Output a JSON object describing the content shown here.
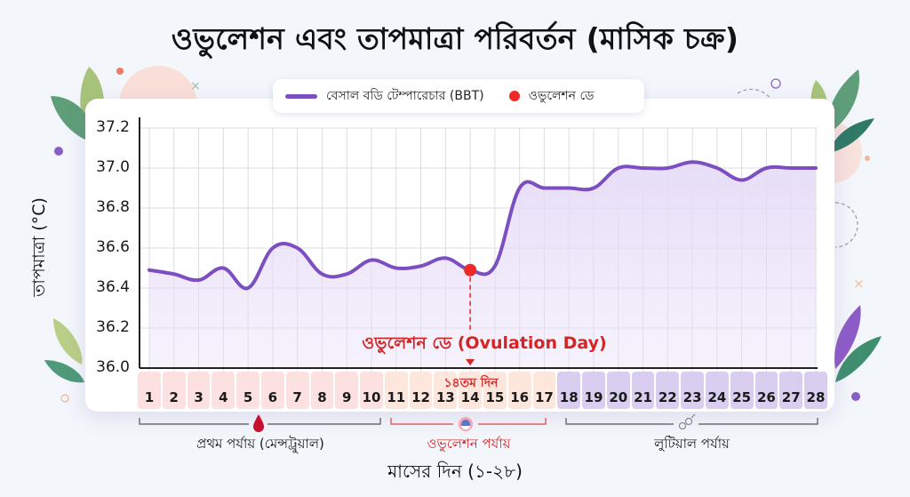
{
  "title": "ওভুলেশন এবং তাপমাত্রা পরিবর্তন (মাসিক চক্র)",
  "legend": {
    "line_label": "বেসাল বডি টেম্পারেচার (BBT)",
    "dot_label": "ওভুলেশন ডে"
  },
  "y_axis": {
    "label": "তাপমাত্রা (°C)",
    "ticks": [
      "37.2",
      "37.0",
      "36.8",
      "36.6",
      "36.4",
      "36.2",
      "36.0"
    ]
  },
  "x_axis": {
    "label": "মাসের দিন (১-২৮)",
    "days": [
      "1",
      "2",
      "3",
      "4",
      "5",
      "6",
      "7",
      "8",
      "9",
      "10",
      "11",
      "12",
      "13",
      "14",
      "15",
      "16",
      "17",
      "18",
      "19",
      "20",
      "21",
      "22",
      "23",
      "24",
      "25",
      "26",
      "27",
      "28"
    ],
    "day14_label": "১৪তম দিন"
  },
  "annotation": {
    "ovulation_text": "ওভুলেশন ডে (Ovulation Day)"
  },
  "phases": [
    {
      "name": "প্রথম পর্যায় (মেন্সট্রুয়াল)",
      "days": "1-10",
      "color": "#fde0e0",
      "icon": "blood-drop-icon"
    },
    {
      "name": "ওভুলেশন পর্যায়",
      "days": "11-17",
      "color": "#fde6dc",
      "icon": "egg-cell-icon"
    },
    {
      "name": "লুটিয়াল পর্যায়",
      "days": "18-28",
      "color": "#d9cdf0",
      "icon": "hormone-molecule-icon"
    }
  ],
  "colors": {
    "line": "#7b4fc2",
    "fill": "#e6dcf7",
    "ovulation_dot": "#f02828",
    "annotation": "#d42424"
  },
  "chart_data": {
    "type": "line",
    "title": "ওভুলেশন এবং তাপমাত্রা পরিবর্তন (মাসিক চক্র)",
    "xlabel": "মাসের দিন (১-২৮)",
    "ylabel": "তাপমাত্রা (°C)",
    "ylim": [
      36.0,
      37.2
    ],
    "grid": true,
    "legend_position": "top",
    "x": [
      1,
      2,
      3,
      4,
      5,
      6,
      7,
      8,
      9,
      10,
      11,
      12,
      13,
      14,
      15,
      16,
      17,
      18,
      19,
      20,
      21,
      22,
      23,
      24,
      25,
      26,
      27,
      28
    ],
    "series": [
      {
        "name": "বেসাল বডি টেম্পারেচার (BBT)",
        "values": [
          36.49,
          36.47,
          36.44,
          36.5,
          36.4,
          36.6,
          36.6,
          36.47,
          36.47,
          36.54,
          36.5,
          36.51,
          36.55,
          36.49,
          36.51,
          36.9,
          36.9,
          36.9,
          36.9,
          37.0,
          37.0,
          37.0,
          37.03,
          37.0,
          36.94,
          37.0,
          37.0,
          37.0
        ]
      }
    ],
    "markers": [
      {
        "name": "ওভুলেশন ডে",
        "x": 14,
        "y": 36.49
      }
    ],
    "annotations": [
      "ওভুলেশন ডে (Ovulation Day)",
      "১৪তম দিন"
    ]
  }
}
